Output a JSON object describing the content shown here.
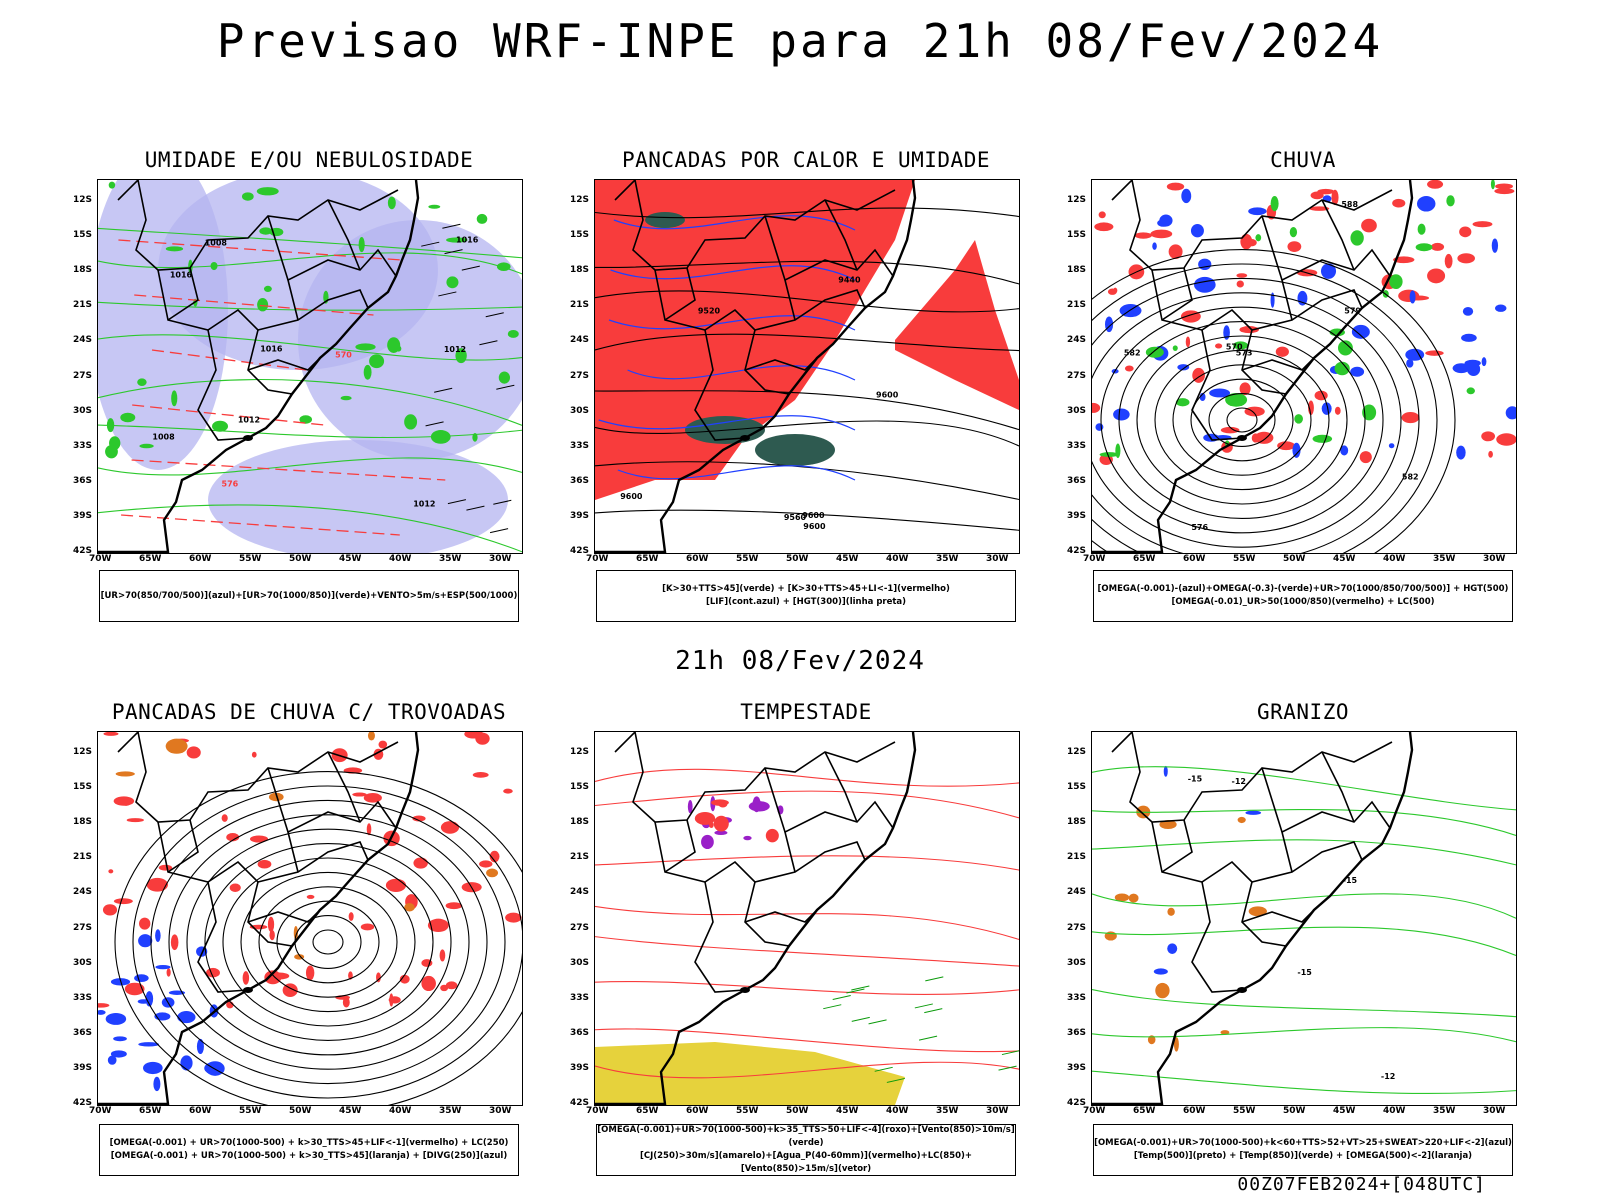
{
  "title": "Previsao WRF-INPE  para 21h 08/Fev/2024",
  "mid_date": "21h 08/Fev/2024",
  "footer": "00Z07FEB2024+[048UTC]",
  "lat_labels": [
    "12S",
    "15S",
    "18S",
    "21S",
    "24S",
    "27S",
    "30S",
    "33S",
    "36S",
    "39S",
    "42S"
  ],
  "lon_labels": [
    "70W",
    "65W",
    "60W",
    "55W",
    "50W",
    "45W",
    "40W",
    "35W",
    "30W"
  ],
  "colors": {
    "red": "#f83c3c",
    "blue": "#2040ff",
    "green": "#2cc82c",
    "lavender": "#b4b4f0",
    "darkgreen": "#2e5a50",
    "yellow": "#e6d23c",
    "purple": "#9a20c8",
    "orange": "#e07820"
  },
  "panels": [
    {
      "title": "UMIDADE E/OU NEBULOSIDADE",
      "legend": [
        "[UR>70(850/700/500)](azul)+[UR>70(1000/850)](verde)+VENTO>5m/s+ESP(500/1000)"
      ],
      "labels": [
        "1008",
        "1012",
        "1016",
        "1012",
        "1008",
        "1016",
        "570",
        "576",
        "1012",
        "1016"
      ]
    },
    {
      "title": "PANCADAS POR CALOR E UMIDADE",
      "legend": [
        "[K>30+TTS>45](verde) + [K>30+TTS>45+LI<-1](vermelho)",
        "[LIF](cont.azul) + [HGT(300)](linha preta)"
      ],
      "labels": [
        "9600",
        "9560",
        "9600",
        "9600",
        "9600",
        "9520",
        "9440"
      ]
    },
    {
      "title": "CHUVA",
      "legend": [
        "[OMEGA(-0.001)-(azul)+OMEGA(-0.3)-(verde)+UR>70(1000/850/700/500)] + HGT(500)",
        "[OMEGA(-0.01)_UR>50(1000/850)(vermelho) + LC(500)"
      ],
      "labels": [
        "582",
        "582",
        "579",
        "576",
        "573",
        "570",
        "588"
      ]
    },
    {
      "title": "PANCADAS DE CHUVA C/ TROVOADAS",
      "legend": [
        "[OMEGA(-0.001) + UR>70(1000-500) + k>30_TTS>45+LIF<-1](vermelho) + LC(250)",
        "[OMEGA(-0.001) + UR>70(1000-500) + k>30_TTS>45](laranja) + [DIVG(250)](azul)"
      ],
      "labels": []
    },
    {
      "title": "TEMPESTADE",
      "legend": [
        "[OMEGA(-0.001)+UR>70(1000-500)+k>35_TTS>50+LIF<-4](roxo)+[Vento(850)>10m/s](verde)",
        "[CJ(250)>30m/s](amarelo)+[Agua_P(40-60mm)](vermelho)+LC(850)+[Vento(850)>15m/s](vetor)"
      ],
      "labels": []
    },
    {
      "title": "GRANIZO",
      "legend": [
        "[OMEGA(-0.001)+UR>70(1000-500)+k<60+TTS>52+VT>25+SWEAT>220+LIF<-2](azul)",
        "[Temp(500)](preto) + [Temp(850)](verde) + [OMEGA(500)<-2](laranja)"
      ],
      "labels": [
        "-15",
        "-12",
        "-15",
        "-12",
        "-15"
      ]
    }
  ]
}
